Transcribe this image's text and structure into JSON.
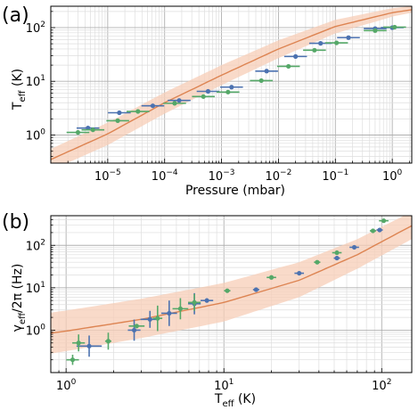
{
  "colors": {
    "blue": "#4c72b0",
    "green": "#55a868",
    "model": "#dd8452",
    "band": "#f7cdb7",
    "grid_major": "#b0b0b0",
    "grid_minor": "#dedede"
  },
  "chart_data": [
    {
      "panel_label": "(a)",
      "type": "scatter",
      "xlabel": "Pressure (mbar)",
      "ylabel_main": "T",
      "ylabel_sub": "eff",
      "ylabel_unit": " (K)",
      "xscale": "log",
      "yscale": "log",
      "xlim": [
        1e-06,
        2.2
      ],
      "ylim": [
        0.3,
        250
      ],
      "xticks": [
        {
          "value": 1e-05,
          "base": "10",
          "exp": "−5"
        },
        {
          "value": 0.0001,
          "base": "10",
          "exp": "−4"
        },
        {
          "value": 0.001,
          "base": "10",
          "exp": "−3"
        },
        {
          "value": 0.01,
          "base": "10",
          "exp": "−2"
        },
        {
          "value": 0.1,
          "base": "10",
          "exp": "−1"
        },
        {
          "value": 1,
          "base": "10",
          "exp": "0"
        }
      ],
      "yticks": [
        {
          "value": 1,
          "base": "10",
          "exp": "0"
        },
        {
          "value": 10,
          "base": "10",
          "exp": "1"
        },
        {
          "value": 100,
          "base": "10",
          "exp": "2"
        }
      ],
      "grid": true,
      "series": [
        {
          "color_key": "blue",
          "points": [
            {
              "x": 4.5e-06,
              "y": 1.35,
              "xerr": 0.2
            },
            {
              "x": 1.6e-05,
              "y": 2.6,
              "xerr": 0.2
            },
            {
              "x": 6.2e-05,
              "y": 3.5,
              "xerr": 0.2
            },
            {
              "x": 0.00018,
              "y": 4.4,
              "xerr": 0.2
            },
            {
              "x": 0.00058,
              "y": 6.5,
              "xerr": 0.2
            },
            {
              "x": 0.0015,
              "y": 7.8,
              "xerr": 0.2
            },
            {
              "x": 0.0062,
              "y": 15.5,
              "xerr": 0.2
            },
            {
              "x": 0.02,
              "y": 29,
              "xerr": 0.2
            },
            {
              "x": 0.055,
              "y": 51,
              "xerr": 0.2
            },
            {
              "x": 0.17,
              "y": 65,
              "xerr": 0.2
            },
            {
              "x": 0.5,
              "y": 96,
              "xerr": 0.2
            },
            {
              "x": 1.0,
              "y": 100,
              "xerr": 0.2
            }
          ]
        },
        {
          "color_key": "green",
          "points": [
            {
              "x": 3e-06,
              "y": 1.12,
              "xerr": 0.2
            },
            {
              "x": 5.5e-06,
              "y": 1.25,
              "xerr": 0.2
            },
            {
              "x": 1.5e-05,
              "y": 1.85,
              "xerr": 0.2
            },
            {
              "x": 3.4e-05,
              "y": 2.75,
              "xerr": 0.2
            },
            {
              "x": 0.00015,
              "y": 3.9,
              "xerr": 0.2
            },
            {
              "x": 0.00048,
              "y": 5.2,
              "xerr": 0.2
            },
            {
              "x": 0.0013,
              "y": 6.3,
              "xerr": 0.2
            },
            {
              "x": 0.005,
              "y": 10.3,
              "xerr": 0.2
            },
            {
              "x": 0.015,
              "y": 19,
              "xerr": 0.2
            },
            {
              "x": 0.043,
              "y": 38,
              "xerr": 0.2
            },
            {
              "x": 0.105,
              "y": 52,
              "xerr": 0.2
            },
            {
              "x": 0.5,
              "y": 88,
              "xerr": 0.2
            },
            {
              "x": 1.1,
              "y": 102,
              "xerr": 0.2
            }
          ]
        }
      ],
      "model_curve": [
        {
          "x": 1e-06,
          "y": 0.35,
          "lo": 0.22,
          "hi": 0.55
        },
        {
          "x": 1e-05,
          "y": 1.05,
          "lo": 0.65,
          "hi": 1.7
        },
        {
          "x": 0.0001,
          "y": 4.0,
          "lo": 2.5,
          "hi": 6.2
        },
        {
          "x": 0.001,
          "y": 13,
          "lo": 8.5,
          "hi": 20
        },
        {
          "x": 0.01,
          "y": 40,
          "lo": 27,
          "hi": 58
        },
        {
          "x": 0.1,
          "y": 105,
          "lo": 78,
          "hi": 140
        },
        {
          "x": 1.0,
          "y": 190,
          "lo": 160,
          "hi": 230
        },
        {
          "x": 2.2,
          "y": 215,
          "lo": 190,
          "hi": 250
        }
      ]
    },
    {
      "panel_label": "(b)",
      "type": "scatter",
      "xlabel_main": "T",
      "xlabel_sub": "eff",
      "xlabel_unit": " (K)",
      "ylabel_main": "γ",
      "ylabel_sub": "eff",
      "ylabel_unit": "/2π (Hz)",
      "xscale": "log",
      "yscale": "log",
      "xlim": [
        0.8,
        155
      ],
      "ylim": [
        0.1,
        500
      ],
      "xticks": [
        {
          "value": 1,
          "base": "10",
          "exp": "0"
        },
        {
          "value": 10,
          "base": "10",
          "exp": "1"
        },
        {
          "value": 100,
          "base": "10",
          "exp": "2"
        }
      ],
      "yticks": [
        {
          "value": 1,
          "base": "10",
          "exp": "0"
        },
        {
          "value": 10,
          "base": "10",
          "exp": "1"
        },
        {
          "value": 100,
          "base": "10",
          "exp": "2"
        }
      ],
      "grid": true,
      "series": [
        {
          "color_key": "blue",
          "points": [
            {
              "x": 1.4,
              "y": 0.42,
              "yerr": 0.25,
              "xerr": 0.08
            },
            {
              "x": 2.7,
              "y": 1.0,
              "yerr": 0.25,
              "xerr": 0.04
            },
            {
              "x": 3.4,
              "y": 1.8,
              "yerr": 0.2,
              "xerr": 0.06
            },
            {
              "x": 4.5,
              "y": 2.5,
              "yerr": 0.3,
              "xerr": 0.05
            },
            {
              "x": 6.5,
              "y": 4.2,
              "yerr": 0.25,
              "xerr": 0.04
            },
            {
              "x": 7.8,
              "y": 5.0,
              "yerr": 0.05,
              "xerr": 0.04
            },
            {
              "x": 16,
              "y": 9.0,
              "yerr": 0.03,
              "xerr": 0.02
            },
            {
              "x": 30,
              "y": 22,
              "yerr": 0.03,
              "xerr": 0.03
            },
            {
              "x": 52,
              "y": 50,
              "yerr": 0.05,
              "xerr": 0.02
            },
            {
              "x": 67,
              "y": 90,
              "yerr": 0.03,
              "xerr": 0.03
            },
            {
              "x": 97,
              "y": 230,
              "yerr": 0.05,
              "xerr": 0.02
            }
          ]
        },
        {
          "color_key": "green",
          "points": [
            {
              "x": 1.1,
              "y": 0.2,
              "yerr": 0.12,
              "xerr": 0.04
            },
            {
              "x": 1.2,
              "y": 0.5,
              "yerr": 0.2,
              "xerr": 0.04
            },
            {
              "x": 1.85,
              "y": 0.55,
              "yerr": 0.2,
              "xerr": 0.02
            },
            {
              "x": 2.8,
              "y": 1.25,
              "yerr": 0.04,
              "xerr": 0.05
            },
            {
              "x": 3.8,
              "y": 1.9,
              "yerr": 0.3,
              "xerr": 0.03
            },
            {
              "x": 5.3,
              "y": 3.2,
              "yerr": 0.25,
              "xerr": 0.05
            },
            {
              "x": 6.5,
              "y": 4.5,
              "yerr": 0.2,
              "xerr": 0.04
            },
            {
              "x": 10.5,
              "y": 8.5,
              "yerr": 0.03,
              "xerr": 0.02
            },
            {
              "x": 20,
              "y": 17.5,
              "yerr": 0.03,
              "xerr": 0.03
            },
            {
              "x": 39,
              "y": 40,
              "yerr": 0.03,
              "xerr": 0.02
            },
            {
              "x": 52,
              "y": 67,
              "yerr": 0.05,
              "xerr": 0.03
            },
            {
              "x": 88,
              "y": 220,
              "yerr": 0.05,
              "xerr": 0.02
            },
            {
              "x": 103,
              "y": 380,
              "yerr": 0.05,
              "xerr": 0.03
            }
          ]
        }
      ],
      "model_curve": [
        {
          "x": 0.8,
          "y": 0.85,
          "lo": 0.28,
          "hi": 2.6
        },
        {
          "x": 1,
          "y": 0.95,
          "lo": 0.32,
          "hi": 2.9
        },
        {
          "x": 3,
          "y": 1.8,
          "lo": 0.65,
          "hi": 5.5
        },
        {
          "x": 10,
          "y": 4.5,
          "lo": 1.6,
          "hi": 13
        },
        {
          "x": 30,
          "y": 15,
          "lo": 6,
          "hi": 40
        },
        {
          "x": 70,
          "y": 60,
          "lo": 28,
          "hi": 140
        },
        {
          "x": 155,
          "y": 290,
          "lo": 140,
          "hi": 620
        }
      ]
    }
  ]
}
